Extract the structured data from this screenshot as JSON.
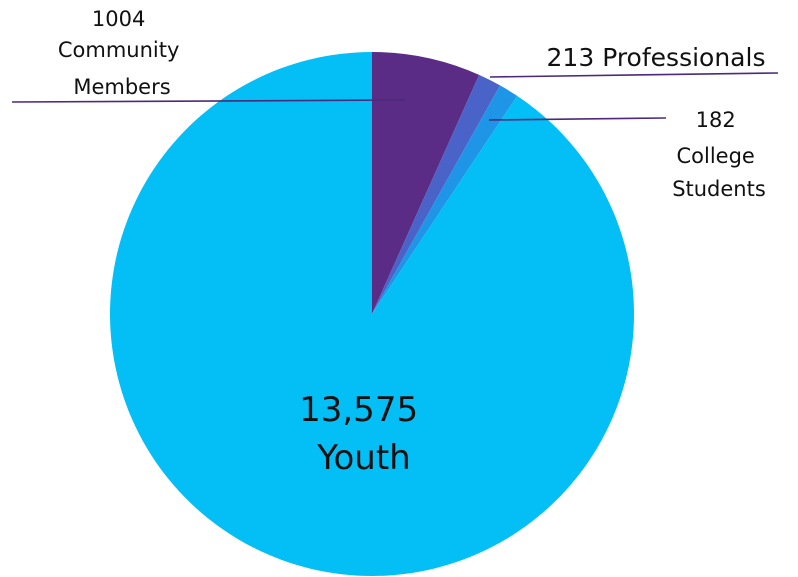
{
  "chart_data": {
    "type": "pie",
    "title": "",
    "start_angle_deg": 0,
    "direction": "clockwise",
    "slices": [
      {
        "name": "Community Members",
        "value": 1004,
        "value_label": "1004",
        "color": "#5B2C86",
        "label_lines": [
          "1004",
          "Community",
          "Members"
        ]
      },
      {
        "name": "Professionals",
        "value": 213,
        "value_label": "213",
        "color": "#4A63C9",
        "label_lines": [
          "213 Professionals"
        ]
      },
      {
        "name": "College Students",
        "value": 182,
        "value_label": "182",
        "color": "#1E95E6",
        "label_lines": [
          "182",
          "College",
          "Students"
        ]
      },
      {
        "name": "Youth",
        "value": 13575,
        "value_label": "13,575",
        "color": "#03BFF5",
        "label_lines": [
          "13,575",
          "Youth"
        ]
      }
    ],
    "leader_line_color": "#4B2A7B"
  }
}
